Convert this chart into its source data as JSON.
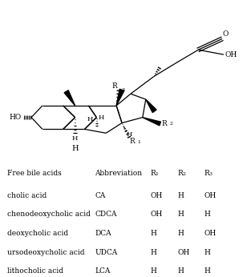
{
  "table_header": [
    "Free bile acids",
    "Abbreviation",
    "R1",
    "R2",
    "R3"
  ],
  "table_rows": [
    [
      "cholic acid",
      "CA",
      "OH",
      "H",
      "OH"
    ],
    [
      "chenodeoxycholic acid",
      "CDCA",
      "OH",
      "H",
      "H"
    ],
    [
      "deoxycholic acid",
      "DCA",
      "H",
      "H",
      "OH"
    ],
    [
      "ursodeoxycholic acid",
      "UDCA",
      "H",
      "OH",
      "H"
    ],
    [
      "lithocholic acid",
      "LCA",
      "H",
      "H",
      "H"
    ]
  ],
  "bg_color": "#ffffff",
  "font_size": 6.5
}
